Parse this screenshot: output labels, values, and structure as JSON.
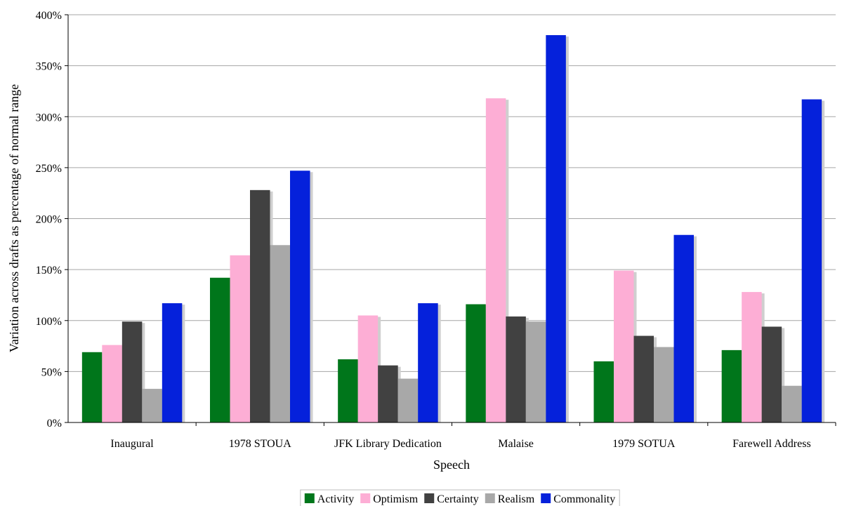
{
  "chart_data": {
    "type": "bar",
    "title": "",
    "xlabel": "Speech",
    "ylabel": "Variation across drafts as percentage of normal range",
    "categories": [
      "Inaugural",
      "1978 STOUA",
      "JFK Library Dedication",
      "Malaise",
      "1979 SOTUA",
      "Farewell Address"
    ],
    "series": [
      {
        "name": "Activity",
        "color": "#00761b",
        "values": [
          69,
          142,
          62,
          116,
          60,
          71
        ]
      },
      {
        "name": "Optimism",
        "color": "#fdaed5",
        "values": [
          76,
          164,
          105,
          318,
          149,
          128
        ]
      },
      {
        "name": "Certainty",
        "color": "#414141",
        "values": [
          99,
          228,
          56,
          104,
          85,
          94
        ]
      },
      {
        "name": "Realism",
        "color": "#a8a8a8",
        "values": [
          33,
          174,
          43,
          99,
          74,
          36
        ]
      },
      {
        "name": "Commonality",
        "color": "#0521db",
        "values": [
          117,
          247,
          117,
          380,
          184,
          317
        ]
      }
    ],
    "ylim": [
      0,
      400
    ],
    "yticks": [
      0,
      50,
      100,
      150,
      200,
      250,
      300,
      350,
      400
    ],
    "ytick_suffix": "%",
    "grid": true,
    "legend_position": "bottom"
  }
}
